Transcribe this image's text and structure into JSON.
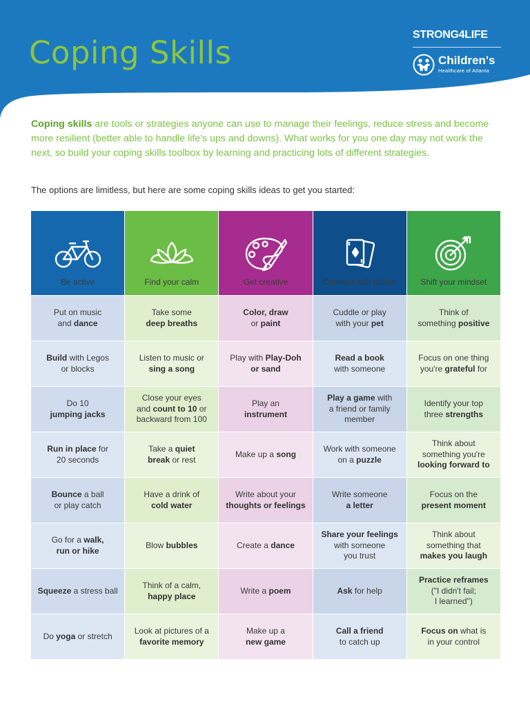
{
  "title": "Coping Skills",
  "logos": {
    "strong4life": "STRONG4LIFE",
    "childrens": "Children's",
    "childrens_sub": "Healthcare of Atlanta"
  },
  "intro": {
    "bold": "Coping skills",
    "text": " are tools or strategies anyone can use to manage their feelings, reduce stress and become more resilient (better able to handle life's ups and downs). What works for you one day may not work the next, so build your coping skills toolbox by learning and practicing lots of different strategies."
  },
  "lead": "The options are limitless, but here are some coping skills ideas to get you started:",
  "colors": {
    "header_bg": "#1c79c0",
    "title": "#8dc63f",
    "col1": "#1568ad",
    "col2": "#6cbd45",
    "col3": "#a62d8f",
    "col4": "#0d4e8b",
    "col5": "#3ea64a"
  },
  "columns": [
    {
      "label": "Be active",
      "icon": "bicycle-icon"
    },
    {
      "label": "Find your calm",
      "icon": "lotus-icon"
    },
    {
      "label": "Get creative",
      "icon": "palette-icon"
    },
    {
      "label": "Connect with others",
      "icon": "playing-cards-icon"
    },
    {
      "label": "Shift your mindset",
      "icon": "target-icon"
    }
  ],
  "rows": [
    [
      [
        {
          "t": "Put on music",
          "b": false
        },
        {
          "br": true
        },
        {
          "t": "and ",
          "b": false
        },
        {
          "t": "dance",
          "b": true
        }
      ],
      [
        {
          "t": "Take some",
          "b": false
        },
        {
          "br": true
        },
        {
          "t": "deep breaths",
          "b": true
        }
      ],
      [
        {
          "t": "Color, draw",
          "b": true
        },
        {
          "br": true
        },
        {
          "t": "or ",
          "b": false
        },
        {
          "t": "paint",
          "b": true
        }
      ],
      [
        {
          "t": "Cuddle or play",
          "b": false
        },
        {
          "br": true
        },
        {
          "t": "with your ",
          "b": false
        },
        {
          "t": "pet",
          "b": true
        }
      ],
      [
        {
          "t": "Think of",
          "b": false
        },
        {
          "br": true
        },
        {
          "t": "something ",
          "b": false
        },
        {
          "t": "positive",
          "b": true
        }
      ]
    ],
    [
      [
        {
          "t": "Build",
          "b": true
        },
        {
          "t": " with Legos",
          "b": false
        },
        {
          "br": true
        },
        {
          "t": "or blocks",
          "b": false
        }
      ],
      [
        {
          "t": "Listen to music or",
          "b": false
        },
        {
          "br": true
        },
        {
          "t": "sing a song",
          "b": true
        }
      ],
      [
        {
          "t": "Play with ",
          "b": false
        },
        {
          "t": "Play-Doh",
          "b": true
        },
        {
          "br": true
        },
        {
          "t": "or sand",
          "b": true
        }
      ],
      [
        {
          "t": "Read a book",
          "b": true
        },
        {
          "br": true
        },
        {
          "t": "with someone",
          "b": false
        }
      ],
      [
        {
          "t": "Focus on one thing",
          "b": false
        },
        {
          "br": true
        },
        {
          "t": "you're ",
          "b": false
        },
        {
          "t": "grateful",
          "b": true
        },
        {
          "t": " for",
          "b": false
        }
      ]
    ],
    [
      [
        {
          "t": "Do 10",
          "b": false
        },
        {
          "br": true
        },
        {
          "t": "jumping jacks",
          "b": true
        }
      ],
      [
        {
          "t": "Close your eyes",
          "b": false
        },
        {
          "br": true
        },
        {
          "t": "and ",
          "b": false
        },
        {
          "t": "count to 10",
          "b": true
        },
        {
          "t": " or",
          "b": false
        },
        {
          "br": true
        },
        {
          "t": "backward from 100",
          "b": false
        }
      ],
      [
        {
          "t": "Play an",
          "b": false
        },
        {
          "br": true
        },
        {
          "t": "instrument",
          "b": true
        }
      ],
      [
        {
          "t": "Play a game",
          "b": true
        },
        {
          "t": " with",
          "b": false
        },
        {
          "br": true
        },
        {
          "t": "a friend or family",
          "b": false
        },
        {
          "br": true
        },
        {
          "t": "member",
          "b": false
        }
      ],
      [
        {
          "t": "Identify your top",
          "b": false
        },
        {
          "br": true
        },
        {
          "t": "three ",
          "b": false
        },
        {
          "t": "strengths",
          "b": true
        }
      ]
    ],
    [
      [
        {
          "t": "Run in place",
          "b": true
        },
        {
          "t": " for",
          "b": false
        },
        {
          "br": true
        },
        {
          "t": "20 seconds",
          "b": false
        }
      ],
      [
        {
          "t": "Take a ",
          "b": false
        },
        {
          "t": "quiet",
          "b": true
        },
        {
          "br": true
        },
        {
          "t": "break",
          "b": true
        },
        {
          "t": " or rest",
          "b": false
        }
      ],
      [
        {
          "t": "Make up a ",
          "b": false
        },
        {
          "t": "song",
          "b": true
        }
      ],
      [
        {
          "t": "Work with someone",
          "b": false
        },
        {
          "br": true
        },
        {
          "t": "on a ",
          "b": false
        },
        {
          "t": "puzzle",
          "b": true
        }
      ],
      [
        {
          "t": "Think about",
          "b": false
        },
        {
          "br": true
        },
        {
          "t": "something you're",
          "b": false
        },
        {
          "br": true
        },
        {
          "t": "looking forward to",
          "b": true
        }
      ]
    ],
    [
      [
        {
          "t": "Bounce",
          "b": true
        },
        {
          "t": " a ball",
          "b": false
        },
        {
          "br": true
        },
        {
          "t": "or play catch",
          "b": false
        }
      ],
      [
        {
          "t": "Have a drink of",
          "b": false
        },
        {
          "br": true
        },
        {
          "t": "cold water",
          "b": true
        }
      ],
      [
        {
          "t": "Write about your",
          "b": false
        },
        {
          "br": true
        },
        {
          "t": "thoughts or feelings",
          "b": true
        }
      ],
      [
        {
          "t": "Write someone",
          "b": false
        },
        {
          "br": true
        },
        {
          "t": "a letter",
          "b": true
        }
      ],
      [
        {
          "t": "Focus on the",
          "b": false
        },
        {
          "br": true
        },
        {
          "t": "present moment",
          "b": true
        }
      ]
    ],
    [
      [
        {
          "t": "Go for a ",
          "b": false
        },
        {
          "t": "walk,",
          "b": true
        },
        {
          "br": true
        },
        {
          "t": "run or hike",
          "b": true
        }
      ],
      [
        {
          "t": "Blow ",
          "b": false
        },
        {
          "t": "bubbles",
          "b": true
        }
      ],
      [
        {
          "t": "Create a ",
          "b": false
        },
        {
          "t": "dance",
          "b": true
        }
      ],
      [
        {
          "t": "Share your feelings",
          "b": true
        },
        {
          "br": true
        },
        {
          "t": "with someone",
          "b": false
        },
        {
          "br": true
        },
        {
          "t": "you trust",
          "b": false
        }
      ],
      [
        {
          "t": "Think about",
          "b": false
        },
        {
          "br": true
        },
        {
          "t": "something that",
          "b": false
        },
        {
          "br": true
        },
        {
          "t": "makes you laugh",
          "b": true
        }
      ]
    ],
    [
      [
        {
          "t": "Squeeze",
          "b": true
        },
        {
          "t": " a stress ball",
          "b": false
        }
      ],
      [
        {
          "t": "Think of a calm,",
          "b": false
        },
        {
          "br": true
        },
        {
          "t": "happy place",
          "b": true
        }
      ],
      [
        {
          "t": "Write a ",
          "b": false
        },
        {
          "t": "poem",
          "b": true
        }
      ],
      [
        {
          "t": "Ask",
          "b": true
        },
        {
          "t": " for help",
          "b": false
        }
      ],
      [
        {
          "t": "Practice reframes",
          "b": true
        },
        {
          "br": true
        },
        {
          "t": "(\"I didn't fail;",
          "b": false
        },
        {
          "br": true
        },
        {
          "t": "I learned\")",
          "b": false
        }
      ]
    ],
    [
      [
        {
          "t": "Do ",
          "b": false
        },
        {
          "t": "yoga",
          "b": true
        },
        {
          "t": " or stretch",
          "b": false
        }
      ],
      [
        {
          "t": "Look at pictures of a",
          "b": false
        },
        {
          "br": true
        },
        {
          "t": "favorite memory",
          "b": true
        }
      ],
      [
        {
          "t": "Make up a",
          "b": false
        },
        {
          "br": true
        },
        {
          "t": "new game",
          "b": true
        }
      ],
      [
        {
          "t": "Call a friend",
          "b": true
        },
        {
          "br": true
        },
        {
          "t": "to catch up",
          "b": false
        }
      ],
      [
        {
          "t": "Focus on",
          "b": true
        },
        {
          "t": " what is",
          "b": false
        },
        {
          "br": true
        },
        {
          "t": "in your control",
          "b": false
        }
      ]
    ]
  ]
}
